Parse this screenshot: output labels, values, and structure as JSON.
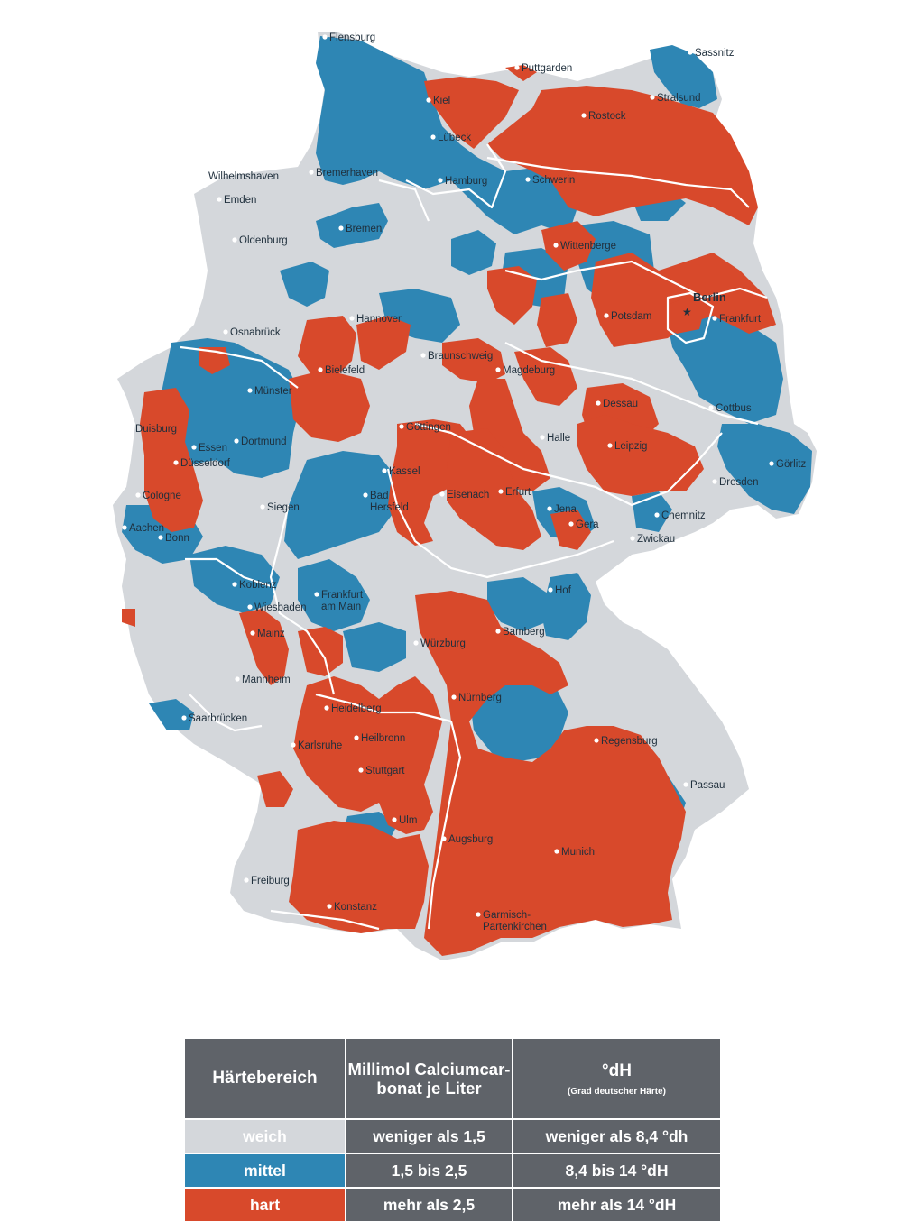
{
  "colors": {
    "weich": "#d4d7db",
    "mittel": "#2e86b4",
    "hart": "#d8492b",
    "table_header": "#5f6369",
    "labels": "#1f2f3c"
  },
  "map": {
    "cities": [
      {
        "name": "Flensburg",
        "capital": false
      },
      {
        "name": "Sassnitz",
        "capital": false
      },
      {
        "name": "Puttgarden",
        "capital": false
      },
      {
        "name": "Stralsund",
        "capital": false
      },
      {
        "name": "Kiel",
        "capital": false
      },
      {
        "name": "Rostock",
        "capital": false
      },
      {
        "name": "Lübeck",
        "capital": false
      },
      {
        "name": "Wilhelmshaven",
        "capital": false
      },
      {
        "name": "Bremerhaven",
        "capital": false
      },
      {
        "name": "Hamburg",
        "capital": false
      },
      {
        "name": "Schwerin",
        "capital": false
      },
      {
        "name": "Emden",
        "capital": false
      },
      {
        "name": "Bremen",
        "capital": false
      },
      {
        "name": "Oldenburg",
        "capital": false
      },
      {
        "name": "Wittenberge",
        "capital": false
      },
      {
        "name": "Berlin",
        "capital": true
      },
      {
        "name": "Osnabrück",
        "capital": false
      },
      {
        "name": "Hannover",
        "capital": false
      },
      {
        "name": "Potsdam",
        "capital": false
      },
      {
        "name": "Frankfurt",
        "capital": false
      },
      {
        "name": "Bielefeld",
        "capital": false
      },
      {
        "name": "Braunschweig",
        "capital": false
      },
      {
        "name": "Magdeburg",
        "capital": false
      },
      {
        "name": "Münster",
        "capital": false
      },
      {
        "name": "Dessau",
        "capital": false
      },
      {
        "name": "Cottbus",
        "capital": false
      },
      {
        "name": "Göttingen",
        "capital": false
      },
      {
        "name": "Duisburg",
        "capital": false
      },
      {
        "name": "Halle",
        "capital": false
      },
      {
        "name": "Essen",
        "capital": false
      },
      {
        "name": "Dortmund",
        "capital": false
      },
      {
        "name": "Leipzig",
        "capital": false
      },
      {
        "name": "Düsseldorf",
        "capital": false
      },
      {
        "name": "Görlitz",
        "capital": false
      },
      {
        "name": "Kassel",
        "capital": false
      },
      {
        "name": "Dresden",
        "capital": false
      },
      {
        "name": "Cologne",
        "capital": false
      },
      {
        "name": "Bad Hersfeld",
        "capital": false
      },
      {
        "name": "Eisenach",
        "capital": false
      },
      {
        "name": "Erfurt",
        "capital": false
      },
      {
        "name": "Jena",
        "capital": false
      },
      {
        "name": "Siegen",
        "capital": false
      },
      {
        "name": "Chemnitz",
        "capital": false
      },
      {
        "name": "Aachen",
        "capital": false
      },
      {
        "name": "Gera",
        "capital": false
      },
      {
        "name": "Bonn",
        "capital": false
      },
      {
        "name": "Zwickau",
        "capital": false
      },
      {
        "name": "Koblenz",
        "capital": false
      },
      {
        "name": "Hof",
        "capital": false
      },
      {
        "name": "Frankfurt am Main",
        "capital": false
      },
      {
        "name": "Wiesbaden",
        "capital": false
      },
      {
        "name": "Bamberg",
        "capital": false
      },
      {
        "name": "Mainz",
        "capital": false
      },
      {
        "name": "Würzburg",
        "capital": false
      },
      {
        "name": "Mannheim",
        "capital": false
      },
      {
        "name": "Nürnberg",
        "capital": false
      },
      {
        "name": "Heidelberg",
        "capital": false
      },
      {
        "name": "Saarbrücken",
        "capital": false
      },
      {
        "name": "Heilbronn",
        "capital": false
      },
      {
        "name": "Regensburg",
        "capital": false
      },
      {
        "name": "Karlsruhe",
        "capital": false
      },
      {
        "name": "Stuttgart",
        "capital": false
      },
      {
        "name": "Passau",
        "capital": false
      },
      {
        "name": "Ulm",
        "capital": false
      },
      {
        "name": "Augsburg",
        "capital": false
      },
      {
        "name": "Munich",
        "capital": false
      },
      {
        "name": "Freiburg",
        "capital": false
      },
      {
        "name": "Konstanz",
        "capital": false
      },
      {
        "name": "Garmisch-Partenkirchen",
        "capital": false
      }
    ]
  },
  "legend": {
    "headers": {
      "col1": "Härtebereich",
      "col2": "Millimol Calciumcar-bonat je Liter",
      "col3": "°dH",
      "col3_sub": "(Grad deutscher Härte)"
    },
    "rows": [
      {
        "level": "weich",
        "mmol": "weniger als 1,5",
        "dh": "weniger als 8,4 °dh"
      },
      {
        "level": "mittel",
        "mmol": "1,5 bis 2,5",
        "dh": "8,4 bis 14 °dH"
      },
      {
        "level": "hart",
        "mmol": "mehr als 2,5",
        "dh": "mehr als 14 °dH"
      }
    ]
  }
}
